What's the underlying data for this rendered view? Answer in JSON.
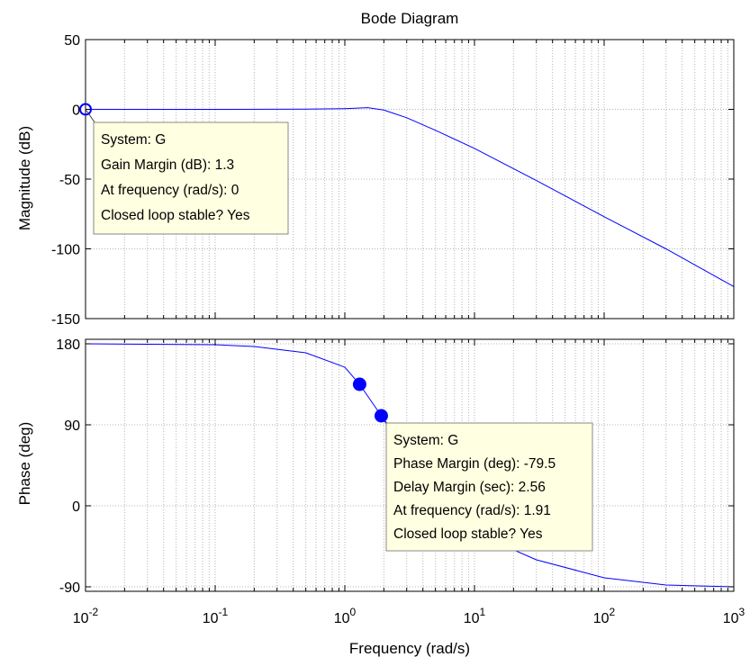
{
  "chart_data": {
    "type": "line",
    "title": "Bode Diagram",
    "xlabel": "Frequency  (rad/s)",
    "x_scale": "log",
    "xlim": [
      0.01,
      1000
    ],
    "x_ticks": [
      {
        "value": 0.01,
        "base": "10",
        "exp": "-2"
      },
      {
        "value": 0.1,
        "base": "10",
        "exp": "-1"
      },
      {
        "value": 1,
        "base": "10",
        "exp": "0"
      },
      {
        "value": 10,
        "base": "10",
        "exp": "1"
      },
      {
        "value": 100,
        "base": "10",
        "exp": "2"
      },
      {
        "value": 1000,
        "base": "10",
        "exp": "3"
      }
    ],
    "grid": true,
    "line_color": "#0000ff",
    "tooltip_bg": "#ffffe1",
    "magnitude": {
      "ylabel": "Magnitude (dB)",
      "ylim": [
        -150,
        50
      ],
      "y_ticks": [
        "50",
        "0",
        "-50",
        "-100",
        "-150"
      ],
      "y_tick_values": [
        50,
        0,
        -50,
        -100,
        -150
      ],
      "x": [
        0.01,
        0.1,
        0.5,
        1,
        1.5,
        2,
        3,
        5,
        10,
        30,
        100,
        300,
        1000
      ],
      "y": [
        0,
        0,
        0.1,
        0.5,
        1.2,
        -0.5,
        -6,
        -15,
        -28,
        -51,
        -77,
        -100,
        -127
      ],
      "marker": {
        "x": 0.01,
        "y": 0
      },
      "tooltip": {
        "anchor": {
          "x": 0.01,
          "y": 0
        },
        "lines": [
          "System: G",
          "Gain Margin (dB): 1.3",
          "At frequency (rad/s): 0",
          "Closed loop stable? Yes"
        ]
      }
    },
    "phase": {
      "ylabel": "Phase (deg)",
      "ylim": [
        -95,
        185
      ],
      "y_ticks": [
        "180",
        "90",
        "0",
        "-90"
      ],
      "y_tick_values": [
        180,
        90,
        0,
        -90
      ],
      "x": [
        0.01,
        0.1,
        0.2,
        0.5,
        1,
        1.3,
        1.91,
        3,
        5,
        10,
        30,
        100,
        300,
        1000
      ],
      "y": [
        180,
        179,
        177,
        170,
        154,
        135,
        100,
        55,
        15,
        -30,
        -60,
        -80,
        -88,
        -90
      ],
      "markers": [
        {
          "x": 1.3,
          "y": 135
        },
        {
          "x": 1.91,
          "y": 100
        }
      ],
      "tooltip": {
        "anchor": {
          "x": 1.91,
          "y": 100
        },
        "lines": [
          "System: G",
          "Phase Margin (deg): -79.5",
          "Delay Margin (sec): 2.56",
          "At frequency (rad/s): 1.91",
          "Closed loop stable? Yes"
        ]
      }
    }
  }
}
